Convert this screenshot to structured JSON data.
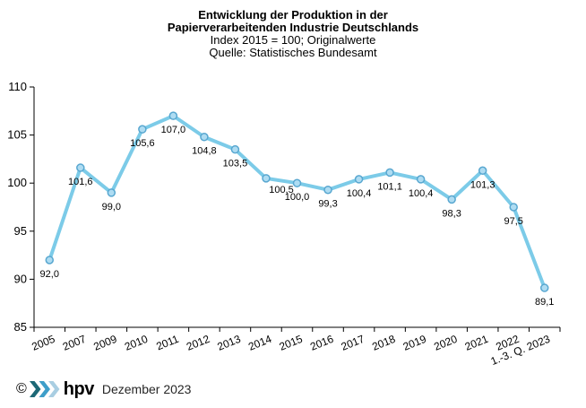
{
  "chart_data": {
    "type": "line",
    "title_lines": [
      "Entwicklung der Produktion in der",
      "Papierverarbeitenden Industrie Deutschlands"
    ],
    "subtitle_lines": [
      "Index 2015 = 100; Originalwerte",
      "Quelle: Statistisches Bundesamt"
    ],
    "categories": [
      "2005",
      "2007",
      "2009",
      "2010",
      "2011",
      "2012",
      "2013",
      "2014",
      "2015",
      "2016",
      "2017",
      "2018",
      "2019",
      "2020",
      "2021",
      "2022",
      "1.-3. Q. 2023"
    ],
    "values": [
      92.0,
      101.6,
      99.0,
      105.6,
      107.0,
      104.8,
      103.5,
      100.5,
      100.0,
      99.3,
      100.4,
      101.1,
      100.4,
      98.3,
      101.3,
      97.5,
      89.1
    ],
    "value_labels": [
      "92,0",
      "101,6",
      "99,0",
      "105,6",
      "107,0",
      "104,8",
      "103,5",
      "100,5",
      "100,0",
      "99,3",
      "100,4",
      "101,1",
      "100,4",
      "98,3",
      "101,3",
      "97,5",
      "89,1"
    ],
    "ylim": [
      85,
      110
    ],
    "yticks": [
      85,
      90,
      95,
      100,
      105,
      110
    ],
    "ytick_labels": [
      "85",
      "90",
      "95",
      "100",
      "105",
      "110"
    ],
    "xlabel": "",
    "ylabel": "",
    "grid": false,
    "legend": "none",
    "xtick_rotation_deg": -22,
    "line_color": "#7CCBE8",
    "marker_fill": "#AEDCF2",
    "marker_stroke": "#58A7D0",
    "axis_color": "#000000",
    "label_color": "#000000"
  },
  "footer": {
    "copyright": "©",
    "logo_text": "hpv",
    "logo_chevron_colors": [
      "#1C6876",
      "#3E9EC9",
      "#A9CEE2"
    ],
    "date": "Dezember 2023"
  }
}
